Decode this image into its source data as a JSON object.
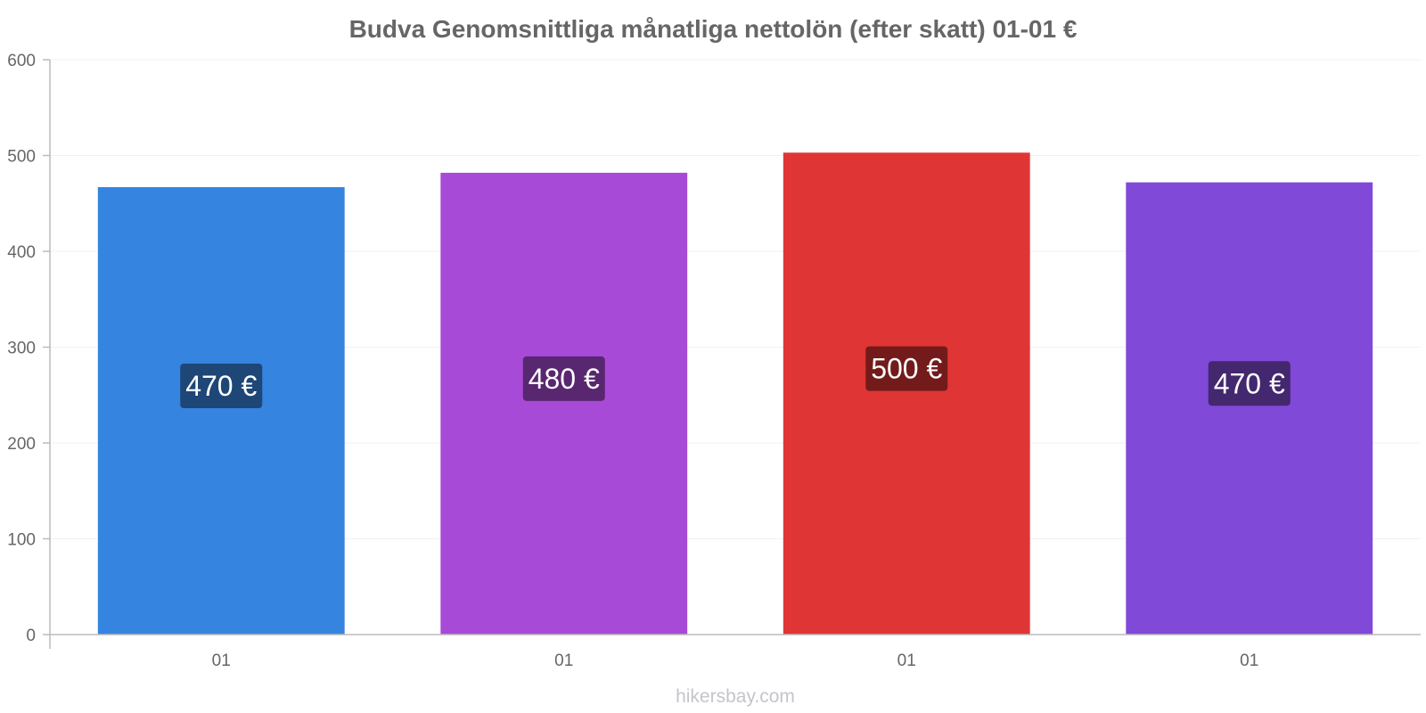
{
  "chart_data": {
    "type": "bar",
    "title": "Budva Genomsnittliga månatliga nettolön (efter skatt) 01-01 €",
    "categories": [
      "01",
      "01",
      "01",
      "01"
    ],
    "values": [
      467,
      482,
      503,
      472
    ],
    "data_labels": [
      "470 €",
      "480 €",
      "500 €",
      "470 €"
    ],
    "bar_colors": [
      "#3584e0",
      "#a84ad8",
      "#e03535",
      "#8049d8"
    ],
    "label_bg_colors": [
      "#1e4676",
      "#58276f",
      "#731b1b",
      "#43276f"
    ],
    "ylim": [
      0,
      600
    ],
    "yticks": [
      "0",
      "100",
      "200",
      "300",
      "400",
      "500",
      "600"
    ],
    "xlabel": "",
    "ylabel": "",
    "grid": true,
    "legend": "none"
  },
  "watermark": "hikersbay.com"
}
